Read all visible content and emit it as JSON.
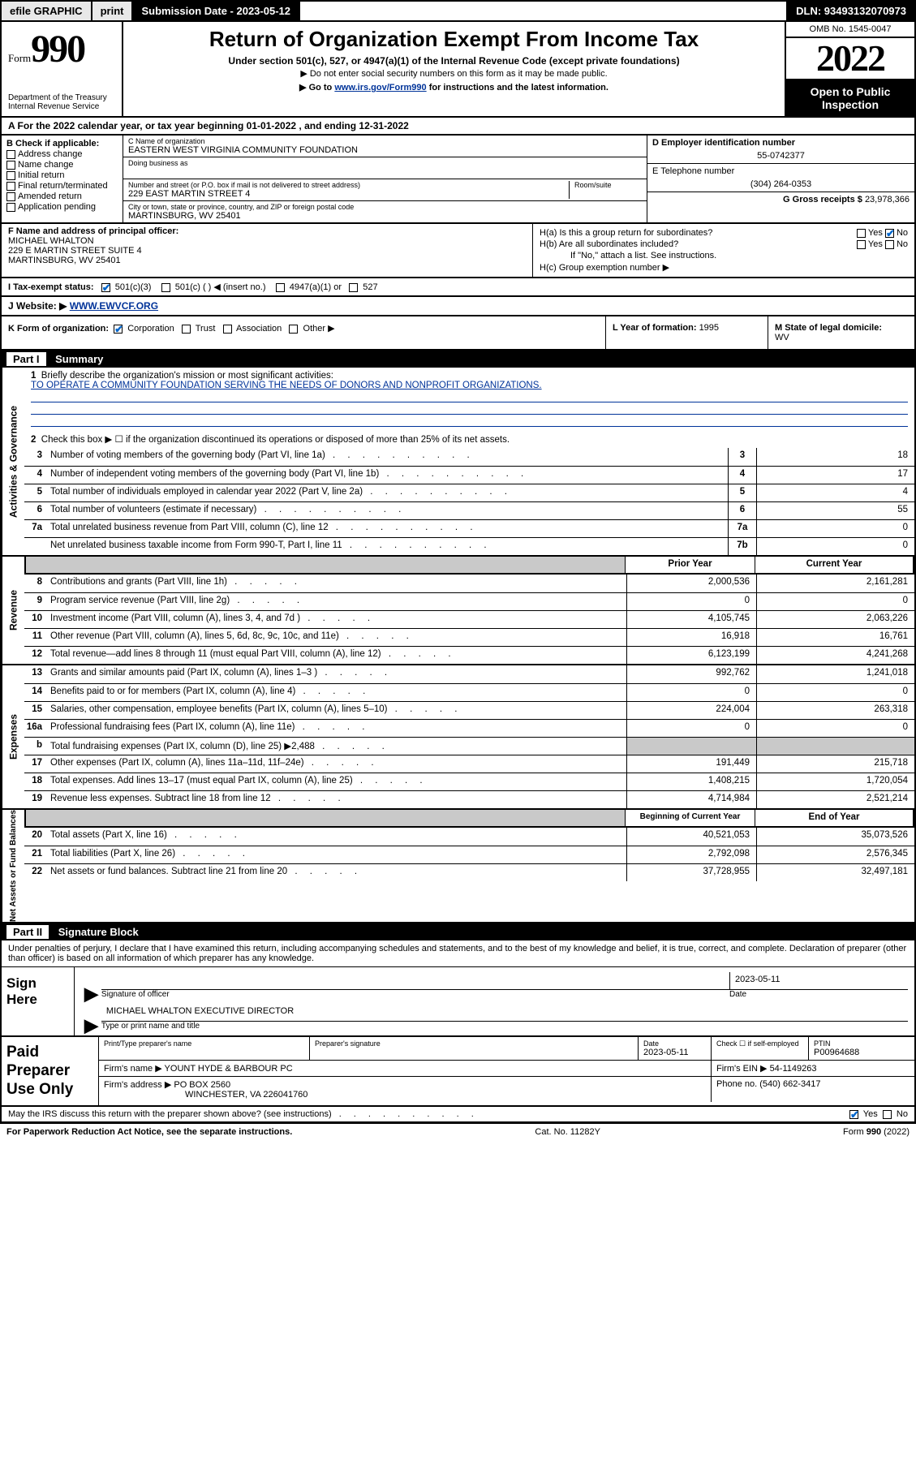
{
  "topbar": {
    "efile": "efile GRAPHIC",
    "print": "print",
    "subLabel": "Submission Date - 2023-05-12",
    "dln": "DLN: 93493132070973"
  },
  "header": {
    "formWord": "Form",
    "formNum": "990",
    "dept": "Department of the Treasury",
    "irs": "Internal Revenue Service",
    "title": "Return of Organization Exempt From Income Tax",
    "sub1": "Under section 501(c), 527, or 4947(a)(1) of the Internal Revenue Code (except private foundations)",
    "sub2": "▶ Do not enter social security numbers on this form as it may be made public.",
    "sub3a": "▶ Go to ",
    "sub3link": "www.irs.gov/Form990",
    "sub3b": " for instructions and the latest information.",
    "omb": "OMB No. 1545-0047",
    "year": "2022",
    "open": "Open to Public Inspection"
  },
  "lineA": {
    "label": "A For the 2022 calendar year, or tax year beginning ",
    "begin": "01-01-2022",
    "mid": "  , and ending ",
    "end": "12-31-2022"
  },
  "colB": {
    "hdr": "B Check if applicable:",
    "items": [
      "Address change",
      "Name change",
      "Initial return",
      "Final return/terminated",
      "Amended return",
      "Application pending"
    ]
  },
  "colC": {
    "nameLab": "C Name of organization",
    "name": "EASTERN WEST VIRGINIA COMMUNITY FOUNDATION",
    "dbaLab": "Doing business as",
    "addrLab": "Number and street (or P.O. box if mail is not delivered to street address)",
    "roomLab": "Room/suite",
    "addr": "229 EAST MARTIN STREET 4",
    "cityLab": "City or town, state or province, country, and ZIP or foreign postal code",
    "city": "MARTINSBURG, WV  25401"
  },
  "colD": {
    "einLab": "D Employer identification number",
    "ein": "55-0742377",
    "telLab": "E Telephone number",
    "tel": "(304) 264-0353",
    "grossLab": "G Gross receipts $ ",
    "gross": "23,978,366"
  },
  "blockF": {
    "lab": "F Name and address of principal officer:",
    "name": "MICHAEL WHALTON",
    "addr": "229 E MARTIN STREET SUITE 4",
    "city": "MARTINSBURG, WV  25401"
  },
  "blockH": {
    "a": "H(a)  Is this a group return for subordinates?",
    "b": "H(b)  Are all subordinates included?",
    "bnote": "If \"No,\" attach a list. See instructions.",
    "c": "H(c)  Group exemption number ▶",
    "yes": "Yes",
    "no": "No"
  },
  "rowI": {
    "lab": "I   Tax-exempt status:",
    "o1": "501(c)(3)",
    "o2": "501(c) (  ) ◀ (insert no.)",
    "o3": "4947(a)(1) or",
    "o4": "527"
  },
  "rowJ": {
    "lab": "J   Website: ▶ ",
    "val": "WWW.EWVCF.ORG"
  },
  "rowK": {
    "lab": "K Form of organization:",
    "o1": "Corporation",
    "o2": "Trust",
    "o3": "Association",
    "o4": "Other ▶"
  },
  "rowL": {
    "lab": "L Year of formation: ",
    "val": "1995"
  },
  "rowM": {
    "lab": "M State of legal domicile:",
    "val": "WV"
  },
  "part1": {
    "hdr": "Summary",
    "pn": "Part I",
    "q1": "Briefly describe the organization's mission or most significant activities:",
    "mission": "TO OPERATE A COMMUNITY FOUNDATION SERVING THE NEEDS OF DONORS AND NONPROFIT ORGANIZATIONS.",
    "q2": "Check this box ▶ ☐  if the organization discontinued its operations or disposed of more than 25% of its net assets."
  },
  "gov": {
    "label": "Activities & Governance",
    "rows": [
      {
        "n": "3",
        "d": "Number of voting members of the governing body (Part VI, line 1a)",
        "b": "3",
        "v": "18"
      },
      {
        "n": "4",
        "d": "Number of independent voting members of the governing body (Part VI, line 1b)",
        "b": "4",
        "v": "17"
      },
      {
        "n": "5",
        "d": "Total number of individuals employed in calendar year 2022 (Part V, line 2a)",
        "b": "5",
        "v": "4"
      },
      {
        "n": "6",
        "d": "Total number of volunteers (estimate if necessary)",
        "b": "6",
        "v": "55"
      },
      {
        "n": "7a",
        "d": "Total unrelated business revenue from Part VIII, column (C), line 12",
        "b": "7a",
        "v": "0"
      },
      {
        "n": "",
        "d": "Net unrelated business taxable income from Form 990-T, Part I, line 11",
        "b": "7b",
        "v": "0"
      }
    ]
  },
  "rev": {
    "label": "Revenue",
    "hPrior": "Prior Year",
    "hCurr": "Current Year",
    "rows": [
      {
        "n": "8",
        "d": "Contributions and grants (Part VIII, line 1h)",
        "p": "2,000,536",
        "c": "2,161,281"
      },
      {
        "n": "9",
        "d": "Program service revenue (Part VIII, line 2g)",
        "p": "0",
        "c": "0"
      },
      {
        "n": "10",
        "d": "Investment income (Part VIII, column (A), lines 3, 4, and 7d )",
        "p": "4,105,745",
        "c": "2,063,226"
      },
      {
        "n": "11",
        "d": "Other revenue (Part VIII, column (A), lines 5, 6d, 8c, 9c, 10c, and 11e)",
        "p": "16,918",
        "c": "16,761"
      },
      {
        "n": "12",
        "d": "Total revenue—add lines 8 through 11 (must equal Part VIII, column (A), line 12)",
        "p": "6,123,199",
        "c": "4,241,268"
      }
    ]
  },
  "exp": {
    "label": "Expenses",
    "rows": [
      {
        "n": "13",
        "d": "Grants and similar amounts paid (Part IX, column (A), lines 1–3 )",
        "p": "992,762",
        "c": "1,241,018"
      },
      {
        "n": "14",
        "d": "Benefits paid to or for members (Part IX, column (A), line 4)",
        "p": "0",
        "c": "0"
      },
      {
        "n": "15",
        "d": "Salaries, other compensation, employee benefits (Part IX, column (A), lines 5–10)",
        "p": "224,004",
        "c": "263,318"
      },
      {
        "n": "16a",
        "d": "Professional fundraising fees (Part IX, column (A), line 11e)",
        "p": "0",
        "c": "0"
      },
      {
        "n": "b",
        "d": "Total fundraising expenses (Part IX, column (D), line 25) ▶2,488",
        "p": "",
        "c": "",
        "grey": true
      },
      {
        "n": "17",
        "d": "Other expenses (Part IX, column (A), lines 11a–11d, 11f–24e)",
        "p": "191,449",
        "c": "215,718"
      },
      {
        "n": "18",
        "d": "Total expenses. Add lines 13–17 (must equal Part IX, column (A), line 25)",
        "p": "1,408,215",
        "c": "1,720,054"
      },
      {
        "n": "19",
        "d": "Revenue less expenses. Subtract line 18 from line 12",
        "p": "4,714,984",
        "c": "2,521,214"
      }
    ]
  },
  "net": {
    "label": "Net Assets or Fund Balances",
    "hPrior": "Beginning of Current Year",
    "hCurr": "End of Year",
    "rows": [
      {
        "n": "20",
        "d": "Total assets (Part X, line 16)",
        "p": "40,521,053",
        "c": "35,073,526"
      },
      {
        "n": "21",
        "d": "Total liabilities (Part X, line 26)",
        "p": "2,792,098",
        "c": "2,576,345"
      },
      {
        "n": "22",
        "d": "Net assets or fund balances. Subtract line 21 from line 20",
        "p": "37,728,955",
        "c": "32,497,181"
      }
    ]
  },
  "part2": {
    "pn": "Part II",
    "hdr": "Signature Block",
    "decl": "Under penalties of perjury, I declare that I have examined this return, including accompanying schedules and statements, and to the best of my knowledge and belief, it is true, correct, and complete. Declaration of preparer (other than officer) is based on all information of which preparer has any knowledge."
  },
  "sign": {
    "lab": "Sign Here",
    "sigOf": "Signature of officer",
    "date": "Date",
    "dateVal": "2023-05-11",
    "name": "MICHAEL WHALTON  EXECUTIVE DIRECTOR",
    "typeLab": "Type or print name and title"
  },
  "prep": {
    "lab": "Paid Preparer Use Only",
    "h1": "Print/Type preparer's name",
    "h2": "Preparer's signature",
    "h3": "Date",
    "dateVal": "2023-05-11",
    "h4": "Check ☐ if self-employed",
    "h5": "PTIN",
    "ptin": "P00964688",
    "firmNameLab": "Firm's name    ▶ ",
    "firmName": "YOUNT HYDE & BARBOUR PC",
    "firmEinLab": "Firm's EIN ▶ ",
    "firmEin": "54-1149263",
    "firmAddrLab": "Firm's address ▶ ",
    "firmAddr1": "PO BOX 2560",
    "firmAddr2": "WINCHESTER, VA  226041760",
    "phoneLab": "Phone no. ",
    "phone": "(540) 662-3417"
  },
  "mayline": "May the IRS discuss this return with the preparer shown above? (see instructions)",
  "footer": {
    "left": "For Paperwork Reduction Act Notice, see the separate instructions.",
    "mid": "Cat. No. 11282Y",
    "right": "Form 990 (2022)"
  }
}
